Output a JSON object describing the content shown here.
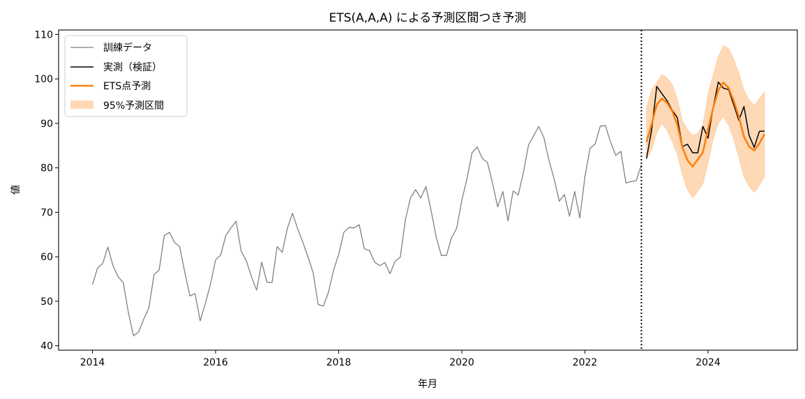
{
  "chart_data": {
    "type": "line",
    "title": "ETS(A,A,A) による予測区間つき予測",
    "xlabel": "年月",
    "ylabel": "値",
    "xlim": [
      2013.45,
      2025.45
    ],
    "ylim": [
      39,
      111
    ],
    "x_ticks": [
      2014,
      2016,
      2018,
      2020,
      2022,
      2024
    ],
    "y_ticks": [
      40,
      50,
      60,
      70,
      80,
      90,
      100,
      110
    ],
    "grid": false,
    "legend_position": "top-left",
    "forecast_start_marker": 2022.917,
    "colors": {
      "train": "#808080",
      "actual": "#000000",
      "forecast": "#ff7f0e",
      "interval": "#ffbf86"
    },
    "series": [
      {
        "name": "訓練データ",
        "start": 2014.0,
        "step": 0.08333,
        "values": [
          53.8,
          57.5,
          58.5,
          62.2,
          58.0,
          55.5,
          54.2,
          47.5,
          42.2,
          43.1,
          46.0,
          48.5,
          56.0,
          57.0,
          64.8,
          65.5,
          63.2,
          62.3,
          56.5,
          51.2,
          51.7,
          45.6,
          49.5,
          53.8,
          59.3,
          60.4,
          64.8,
          66.5,
          68.0,
          61.2,
          59.1,
          55.5,
          52.5,
          58.8,
          54.3,
          54.2,
          62.3,
          61.0,
          66.4,
          69.8,
          66.3,
          63.3,
          60.0,
          56.5,
          49.3,
          48.9,
          52.0,
          57.0,
          60.5,
          65.5,
          66.6,
          66.5,
          67.2,
          61.8,
          61.4,
          58.8,
          58.0,
          58.7,
          56.2,
          59.0,
          59.9,
          68.3,
          73.3,
          75.1,
          73.2,
          75.8,
          70.5,
          64.5,
          60.3,
          60.3,
          64.3,
          66.4,
          72.7,
          77.5,
          83.4,
          84.7,
          82.1,
          81.2,
          76.5,
          71.2,
          74.7,
          68.1,
          74.8,
          73.9,
          78.9,
          85.1,
          87.2,
          89.3,
          86.8,
          81.6,
          77.5,
          72.5,
          74.0,
          69.1,
          74.7,
          68.7,
          78.0,
          84.4,
          85.4,
          89.4,
          89.5,
          85.8,
          82.8,
          83.7,
          76.6,
          76.9,
          77.1,
          80.7
        ]
      },
      {
        "name": "実測（検証）",
        "start": 2023.0,
        "step": 0.08333,
        "values": [
          82.1,
          88.5,
          98.3,
          96.7,
          95.1,
          93.0,
          91.3,
          84.8,
          85.3,
          83.4,
          83.4,
          89.3,
          86.7,
          93.6,
          99.3,
          97.9,
          97.6,
          94.2,
          90.7,
          93.8,
          87.3,
          84.6,
          88.2,
          88.3
        ]
      },
      {
        "name": "ETS点予測",
        "start": 2023.0,
        "step": 0.08333,
        "values": [
          85.8,
          89.8,
          94.2,
          95.6,
          94.6,
          92.8,
          89.7,
          84.6,
          81.7,
          80.3,
          81.9,
          83.5,
          88.7,
          93.5,
          97.5,
          99.2,
          98.0,
          95.1,
          91.5,
          87.0,
          84.8,
          83.9,
          85.5,
          87.6
        ]
      }
    ],
    "interval": {
      "name": "95%予測区間",
      "start": 2023.0,
      "step": 0.08333,
      "upper": [
        93.5,
        97.5,
        99.2,
        101.0,
        100.2,
        98.8,
        95.5,
        90.5,
        88.6,
        87.2,
        87.8,
        89.7,
        96.5,
        101.0,
        105.0,
        107.5,
        106.8,
        104.5,
        101.3,
        97.5,
        95.3,
        94.0,
        95.6,
        97.0
      ],
      "lower": [
        82.0,
        84.0,
        88.0,
        90.0,
        88.5,
        86.0,
        83.0,
        78.5,
        75.0,
        73.3,
        74.7,
        76.5,
        81.0,
        86.5,
        90.0,
        91.5,
        89.6,
        86.5,
        82.3,
        78.0,
        75.8,
        74.5,
        76.0,
        78.0
      ]
    }
  }
}
